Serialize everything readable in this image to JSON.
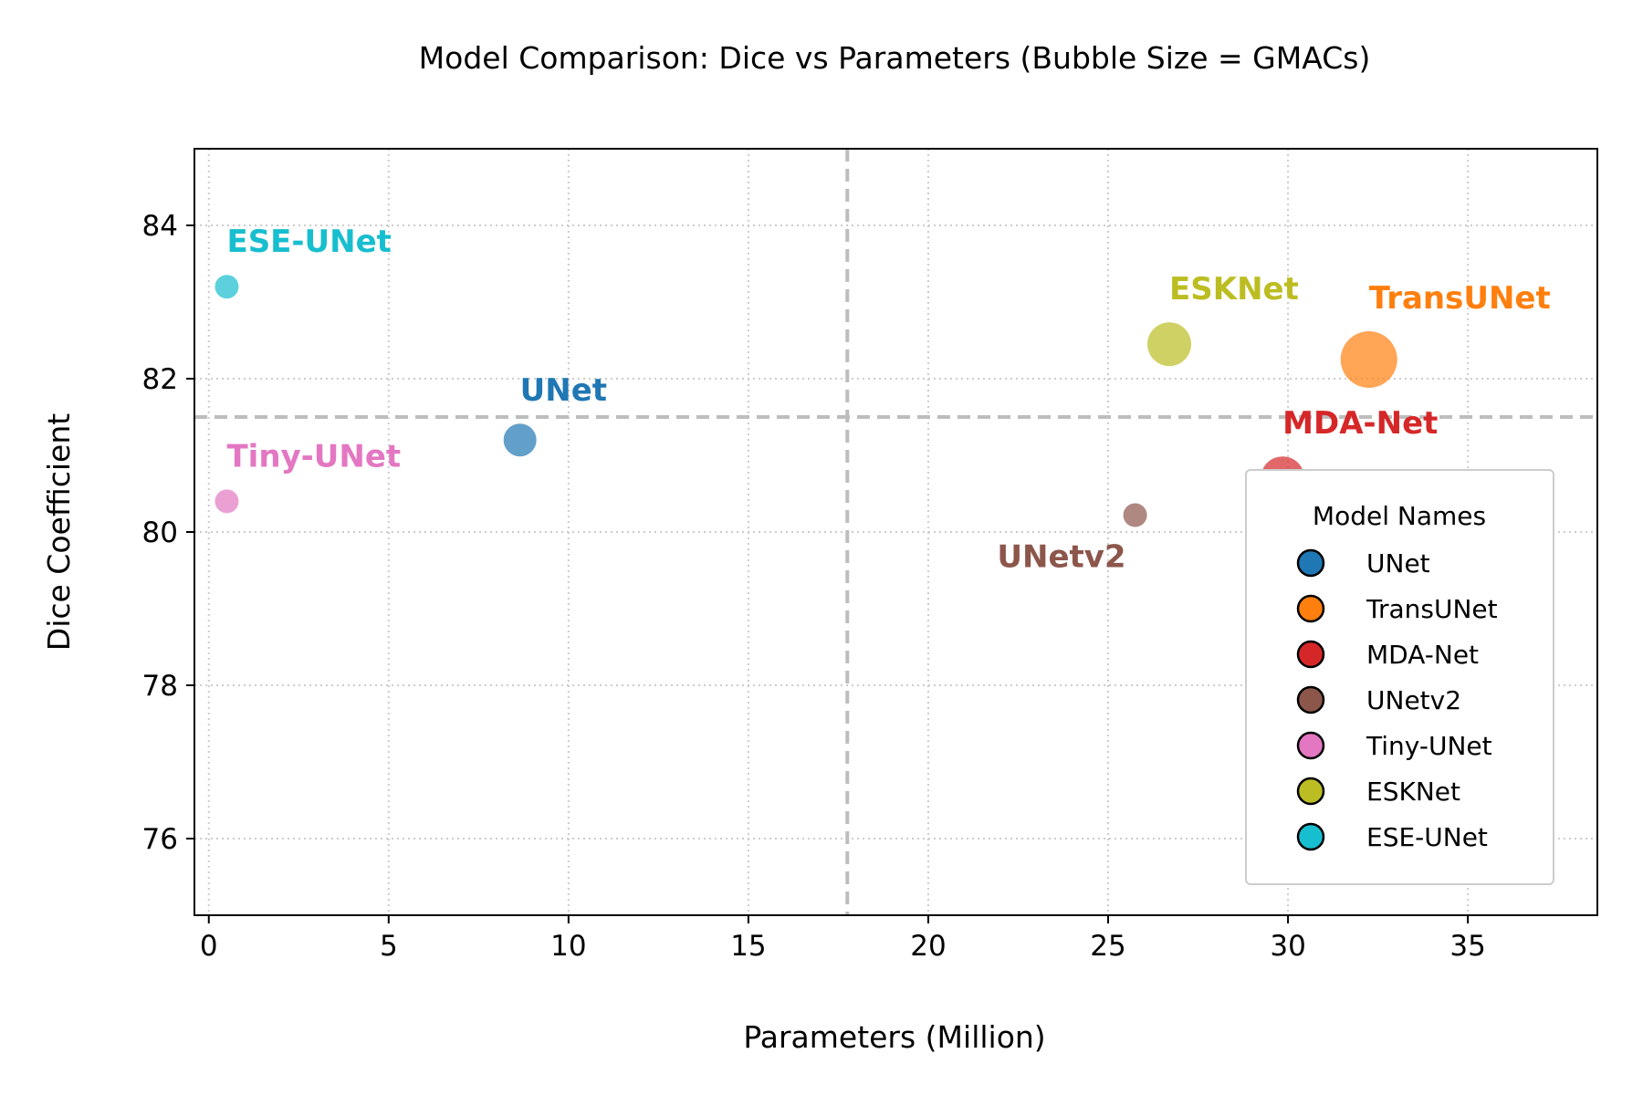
{
  "chart_data": {
    "type": "scatter",
    "title": "Model Comparison: Dice vs Parameters (Bubble Size = GMACs)",
    "xlabel": "Parameters (Million)",
    "ylabel": "Dice Coefficient",
    "xlim": [
      -0.4,
      38.6
    ],
    "ylim": [
      75,
      85
    ],
    "xticks": [
      0,
      5,
      10,
      15,
      20,
      25,
      30,
      35
    ],
    "yticks": [
      76,
      78,
      80,
      82,
      84
    ],
    "grid": true,
    "reference_lines": {
      "x": 17.75,
      "y": 81.5
    },
    "legend": {
      "title": "Model Names",
      "position": "lower-right"
    },
    "points": [
      {
        "name": "UNet",
        "x": 8.65,
        "y": 81.2,
        "color": "#1f77b4",
        "size": "medium"
      },
      {
        "name": "TransUNet",
        "x": 32.25,
        "y": 82.25,
        "color": "#ff7f0e",
        "size": "largest"
      },
      {
        "name": "MDA-Net",
        "x": 29.85,
        "y": 80.7,
        "color": "#d62728",
        "size": "large"
      },
      {
        "name": "UNetv2",
        "x": 25.75,
        "y": 80.22,
        "color": "#8c564b",
        "size": "small"
      },
      {
        "name": "Tiny-UNet",
        "x": 0.5,
        "y": 80.4,
        "color": "#e377c2",
        "size": "small"
      },
      {
        "name": "ESKNet",
        "x": 26.7,
        "y": 82.45,
        "color": "#bcbd22",
        "size": "large"
      },
      {
        "name": "ESE-UNet",
        "x": 0.5,
        "y": 83.2,
        "color": "#17becf",
        "size": "small"
      }
    ]
  }
}
